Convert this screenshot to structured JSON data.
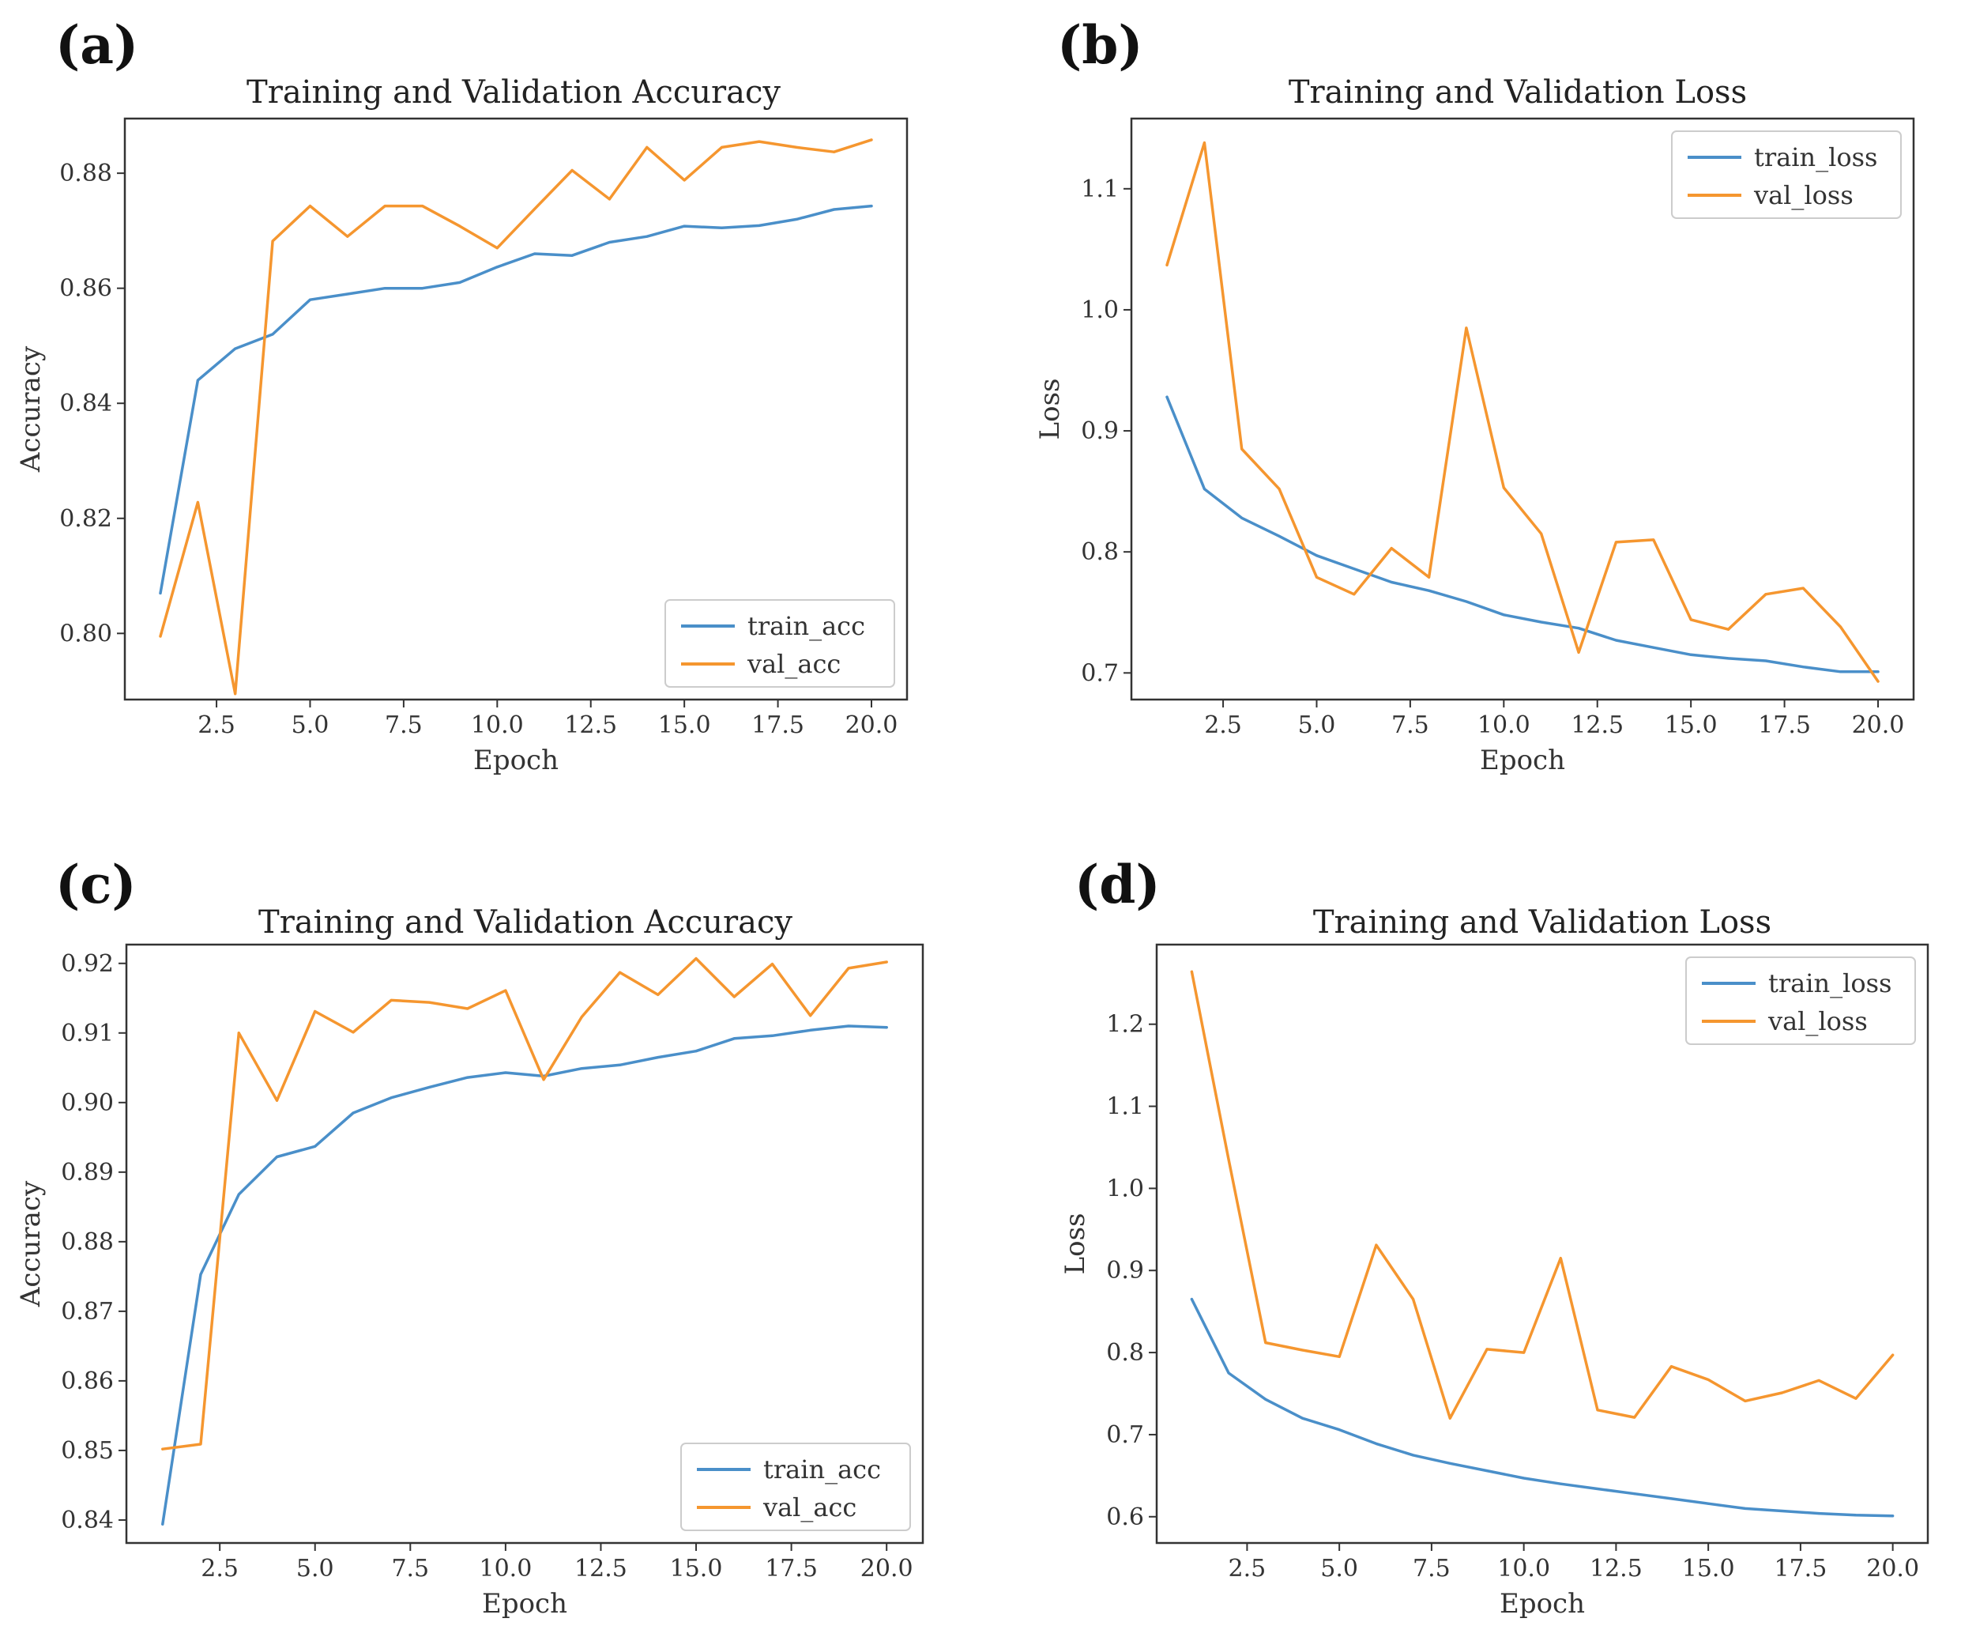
{
  "colors": {
    "train": "#4a8fc9",
    "val": "#f5962f"
  },
  "chart_data": [
    {
      "panel": "(a)",
      "type": "line",
      "title": "Training and Validation Accuracy",
      "xlabel": "Epoch",
      "ylabel": "Accuracy",
      "xlim": [
        0.05,
        20.95
      ],
      "ylim": [
        0.7885,
        0.8895
      ],
      "xticks": [
        "2.5",
        "5.0",
        "7.5",
        "10.0",
        "12.5",
        "15.0",
        "17.5",
        "20.0"
      ],
      "yticks": [
        "0.80",
        "0.82",
        "0.84",
        "0.86",
        "0.88"
      ],
      "legend_position": "bottom-right",
      "x": [
        1,
        2,
        3,
        4,
        5,
        6,
        7,
        8,
        9,
        10,
        11,
        12,
        13,
        14,
        15,
        16,
        17,
        18,
        19,
        20
      ],
      "series": [
        {
          "name": "train_acc",
          "color_key": "train",
          "values": [
            0.807,
            0.844,
            0.8495,
            0.852,
            0.858,
            0.859,
            0.86,
            0.86,
            0.861,
            0.8637,
            0.866,
            0.8657,
            0.868,
            0.869,
            0.8708,
            0.8705,
            0.8709,
            0.872,
            0.8737,
            0.8743
          ]
        },
        {
          "name": "val_acc",
          "color_key": "val",
          "values": [
            0.7995,
            0.8228,
            0.7895,
            0.8682,
            0.8743,
            0.869,
            0.8743,
            0.8743,
            0.8708,
            0.867,
            0.8738,
            0.8805,
            0.8755,
            0.8845,
            0.8788,
            0.8845,
            0.8855,
            0.8845,
            0.8837,
            0.8858
          ]
        }
      ]
    },
    {
      "panel": "(b)",
      "type": "line",
      "title": "Training and Validation Loss",
      "xlabel": "Epoch",
      "ylabel": "Loss",
      "xlim": [
        0.05,
        20.95
      ],
      "ylim": [
        0.678,
        1.158
      ],
      "xticks": [
        "2.5",
        "5.0",
        "7.5",
        "10.0",
        "12.5",
        "15.0",
        "17.5",
        "20.0"
      ],
      "yticks": [
        "0.7",
        "0.8",
        "0.9",
        "1.0",
        "1.1"
      ],
      "legend_position": "top-right",
      "x": [
        1,
        2,
        3,
        4,
        5,
        6,
        7,
        8,
        9,
        10,
        11,
        12,
        13,
        14,
        15,
        16,
        17,
        18,
        19,
        20
      ],
      "series": [
        {
          "name": "train_loss",
          "color_key": "train",
          "values": [
            0.928,
            0.852,
            0.828,
            0.813,
            0.797,
            0.786,
            0.775,
            0.768,
            0.759,
            0.748,
            0.742,
            0.737,
            0.727,
            0.721,
            0.715,
            0.712,
            0.71,
            0.705,
            0.701,
            0.701
          ]
        },
        {
          "name": "val_loss",
          "color_key": "val",
          "values": [
            1.037,
            1.138,
            0.885,
            0.852,
            0.779,
            0.765,
            0.803,
            0.779,
            0.985,
            0.853,
            0.815,
            0.717,
            0.808,
            0.81,
            0.744,
            0.736,
            0.765,
            0.77,
            0.738,
            0.693
          ]
        }
      ]
    },
    {
      "panel": "(c)",
      "type": "line",
      "title": "Training and Validation Accuracy",
      "xlabel": "Epoch",
      "ylabel": "Accuracy",
      "xlim": [
        0.05,
        20.95
      ],
      "ylim": [
        0.8367,
        0.9227
      ],
      "xticks": [
        "2.5",
        "5.0",
        "7.5",
        "10.0",
        "12.5",
        "15.0",
        "17.5",
        "20.0"
      ],
      "yticks": [
        "0.84",
        "0.85",
        "0.86",
        "0.87",
        "0.88",
        "0.89",
        "0.90",
        "0.91",
        "0.92"
      ],
      "legend_position": "bottom-right",
      "x": [
        1,
        2,
        3,
        4,
        5,
        6,
        7,
        8,
        9,
        10,
        11,
        12,
        13,
        14,
        15,
        16,
        17,
        18,
        19,
        20
      ],
      "series": [
        {
          "name": "train_acc",
          "color_key": "train",
          "values": [
            0.8394,
            0.8753,
            0.8868,
            0.8922,
            0.8937,
            0.8985,
            0.9007,
            0.9022,
            0.9036,
            0.9043,
            0.9038,
            0.9049,
            0.9054,
            0.9065,
            0.9074,
            0.9092,
            0.9096,
            0.9104,
            0.911,
            0.9108
          ]
        },
        {
          "name": "val_acc",
          "color_key": "val",
          "values": [
            0.8502,
            0.8509,
            0.91,
            0.9003,
            0.9131,
            0.9101,
            0.9147,
            0.9144,
            0.9135,
            0.9161,
            0.9033,
            0.9123,
            0.9187,
            0.9155,
            0.9207,
            0.9152,
            0.9199,
            0.9125,
            0.9193,
            0.9202
          ]
        }
      ]
    },
    {
      "panel": "(d)",
      "type": "line",
      "title": "Training and Validation Loss",
      "xlabel": "Epoch",
      "ylabel": "Loss",
      "xlim": [
        0.05,
        20.95
      ],
      "ylim": [
        0.568,
        1.297
      ],
      "xticks": [
        "2.5",
        "5.0",
        "7.5",
        "10.0",
        "12.5",
        "15.0",
        "17.5",
        "20.0"
      ],
      "yticks": [
        "0.6",
        "0.7",
        "0.8",
        "0.9",
        "1.0",
        "1.1",
        "1.2"
      ],
      "legend_position": "top-right",
      "x": [
        1,
        2,
        3,
        4,
        5,
        6,
        7,
        8,
        9,
        10,
        11,
        12,
        13,
        14,
        15,
        16,
        17,
        18,
        19,
        20
      ],
      "series": [
        {
          "name": "train_loss",
          "color_key": "train",
          "values": [
            0.865,
            0.775,
            0.743,
            0.72,
            0.706,
            0.689,
            0.675,
            0.665,
            0.656,
            0.647,
            0.64,
            0.634,
            0.628,
            0.622,
            0.616,
            0.61,
            0.607,
            0.604,
            0.602,
            0.601
          ]
        },
        {
          "name": "val_loss",
          "color_key": "val",
          "values": [
            1.264,
            1.035,
            0.812,
            0.803,
            0.795,
            0.931,
            0.865,
            0.72,
            0.804,
            0.8,
            0.915,
            0.73,
            0.721,
            0.783,
            0.767,
            0.741,
            0.751,
            0.766,
            0.744,
            0.797
          ]
        }
      ]
    }
  ]
}
